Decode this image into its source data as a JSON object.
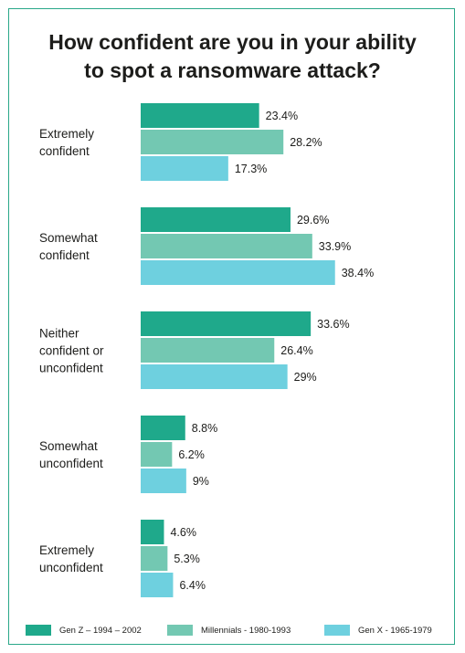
{
  "title": [
    "How confident are you in your ability",
    "to spot a ransomware attack?"
  ],
  "colors": {
    "border": "#2aa889",
    "gen_z": "#1fa98b",
    "millennials": "#73c8b2",
    "gen_x": "#6ed0df",
    "text": "#1d1d1b"
  },
  "chart_data": {
    "type": "bar",
    "orientation": "horizontal",
    "title": "How confident are you in your ability to spot a ransomware attack?",
    "categories": [
      [
        "Extremely",
        "confident"
      ],
      [
        "Somewhat",
        "confident"
      ],
      [
        "Neither",
        "confident or",
        "unconfident"
      ],
      [
        "Somewhat",
        "unconfident"
      ],
      [
        "Extremely",
        "unconfident"
      ]
    ],
    "series": [
      {
        "name": "Gen Z – 1994 – 2002",
        "values": [
          23.4,
          29.6,
          33.6,
          8.8,
          4.6
        ],
        "labels": [
          "23.4%",
          "29.6%",
          "33.6%",
          "8.8%",
          "4.6%"
        ]
      },
      {
        "name": "Millennials - 1980-1993",
        "values": [
          28.2,
          33.9,
          26.4,
          6.2,
          5.3
        ],
        "labels": [
          "28.2%",
          "33.9%",
          "26.4%",
          "6.2%",
          "5.3%"
        ]
      },
      {
        "name": "Gen X - 1965-1979",
        "values": [
          17.3,
          38.4,
          29,
          9,
          6.4
        ],
        "labels": [
          "17.3%",
          "38.4%",
          "29%",
          "9%",
          "6.4%"
        ]
      }
    ],
    "legend_position": "bottom",
    "grid": false,
    "axis_visible": false
  }
}
